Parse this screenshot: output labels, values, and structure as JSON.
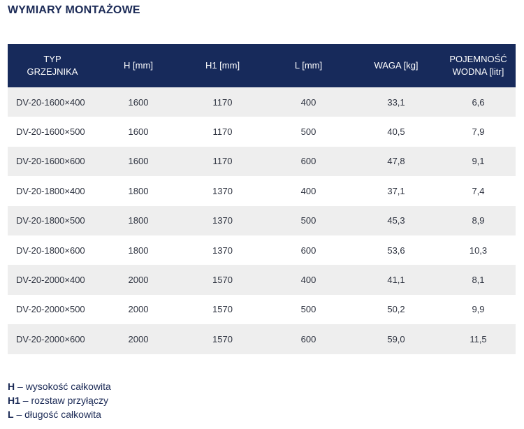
{
  "title": "WYMIARY MONTAŻOWE",
  "table": {
    "headers": [
      [
        "TYP",
        "GRZEJNIKA"
      ],
      [
        "H [mm]"
      ],
      [
        "H1 [mm]"
      ],
      [
        "L [mm]"
      ],
      [
        "WAGA [kg]"
      ],
      [
        "POJEMNOŚĆ",
        "WODNA [litr]"
      ]
    ],
    "rows": [
      [
        "DV-20-1600×400",
        "1600",
        "1170",
        "400",
        "33,1",
        "6,6"
      ],
      [
        "DV-20-1600×500",
        "1600",
        "1170",
        "500",
        "40,5",
        "7,9"
      ],
      [
        "DV-20-1600×600",
        "1600",
        "1170",
        "600",
        "47,8",
        "9,1"
      ],
      [
        "DV-20-1800×400",
        "1800",
        "1370",
        "400",
        "37,1",
        "7,4"
      ],
      [
        "DV-20-1800×500",
        "1800",
        "1370",
        "500",
        "45,3",
        "8,9"
      ],
      [
        "DV-20-1800×600",
        "1800",
        "1370",
        "600",
        "53,6",
        "10,3"
      ],
      [
        "DV-20-2000×400",
        "2000",
        "1570",
        "400",
        "41,1",
        "8,1"
      ],
      [
        "DV-20-2000×500",
        "2000",
        "1570",
        "500",
        "50,2",
        "9,9"
      ],
      [
        "DV-20-2000×600",
        "2000",
        "1570",
        "600",
        "59,0",
        "11,5"
      ]
    ]
  },
  "legend": [
    {
      "key": "H",
      "text": " – wysokość całkowita"
    },
    {
      "key": "H1",
      "text": " – rozstaw przyłączy"
    },
    {
      "key": "L",
      "text": " – długość całkowita"
    }
  ],
  "colors": {
    "header_bg": "#172a5b",
    "title": "#1b2a56",
    "row_stripe": "#eeeeee"
  }
}
